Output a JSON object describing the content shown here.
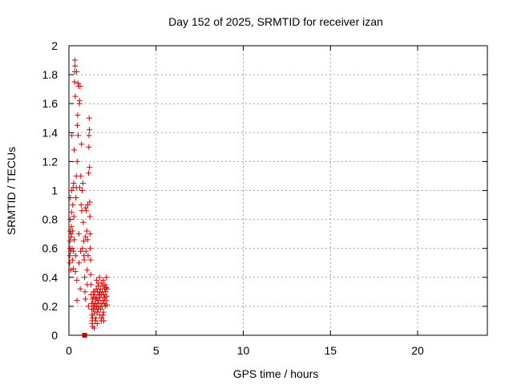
{
  "chart_data": {
    "type": "scatter",
    "title": "Day 152 of 2025, SRMTID for receiver izan",
    "xlabel": "GPS time / hours",
    "ylabel": "SRMTID / TECUs",
    "xlim": [
      0,
      24
    ],
    "ylim": [
      0,
      2
    ],
    "xticks": [
      0,
      5,
      10,
      15,
      20
    ],
    "yticks": [
      0,
      0.2,
      0.4,
      0.6,
      0.8,
      1,
      1.2,
      1.4,
      1.6,
      1.8,
      2
    ],
    "xtick_labels": [
      "0",
      "5",
      "10",
      "15",
      "20"
    ],
    "ytick_labels": [
      "0",
      "0.2",
      "0.4",
      "0.6",
      "0.8",
      "1",
      "1.2",
      "1.4",
      "1.6",
      "1.8",
      "2"
    ],
    "grid": true,
    "marker": "plus",
    "series": [
      {
        "name": "SRMTID",
        "color": "#dd0000",
        "points": [
          [
            0.05,
            0.5
          ],
          [
            0.05,
            0.55
          ],
          [
            0.06,
            0.6
          ],
          [
            0.06,
            0.65
          ],
          [
            0.07,
            0.72
          ],
          [
            0.08,
            0.8
          ],
          [
            0.08,
            0.95
          ],
          [
            0.1,
            0.45
          ],
          [
            0.1,
            0.58
          ],
          [
            0.12,
            0.68
          ],
          [
            0.13,
            0.7
          ],
          [
            0.14,
            0.75
          ],
          [
            0.15,
            0.85
          ],
          [
            0.15,
            1.0
          ],
          [
            0.17,
            1.38
          ],
          [
            0.18,
            0.6
          ],
          [
            0.2,
            0.52
          ],
          [
            0.2,
            0.72
          ],
          [
            0.22,
            0.9
          ],
          [
            0.24,
            1.02
          ],
          [
            0.25,
            0.46
          ],
          [
            0.26,
            0.58
          ],
          [
            0.27,
            1.05
          ],
          [
            0.28,
            0.82
          ],
          [
            0.3,
            0.66
          ],
          [
            0.3,
            1.28
          ],
          [
            0.32,
            1.75
          ],
          [
            0.33,
            1.82
          ],
          [
            0.34,
            1.9
          ],
          [
            0.35,
            1.86
          ],
          [
            0.36,
            1.65
          ],
          [
            0.37,
            0.44
          ],
          [
            0.38,
            0.55
          ],
          [
            0.4,
            0.95
          ],
          [
            0.42,
            1.1
          ],
          [
            0.43,
            1.02
          ],
          [
            0.44,
            1.82
          ],
          [
            0.45,
            0.38
          ],
          [
            0.46,
            0.24
          ],
          [
            0.47,
            1.2
          ],
          [
            0.48,
            1.45
          ],
          [
            0.5,
            1.52
          ],
          [
            0.52,
            1.74
          ],
          [
            0.53,
            1.38
          ],
          [
            0.55,
            1.72
          ],
          [
            0.56,
            0.7
          ],
          [
            0.58,
            0.5
          ],
          [
            0.6,
            1.6
          ],
          [
            0.61,
            1.62
          ],
          [
            0.62,
            1.02
          ],
          [
            0.64,
            1.72
          ],
          [
            0.65,
            0.32
          ],
          [
            0.67,
            0.58
          ],
          [
            0.68,
            1.1
          ],
          [
            0.7,
            0.9
          ],
          [
            0.72,
            1.32
          ],
          [
            0.74,
            0.86
          ],
          [
            0.76,
            1.0
          ],
          [
            0.78,
            0.6
          ],
          [
            0.8,
            1.05
          ],
          [
            0.82,
            0.78
          ],
          [
            0.84,
            0.65
          ],
          [
            0.86,
            0.55
          ],
          [
            0.88,
            0.52
          ],
          [
            0.9,
            0.4
          ],
          [
            0.92,
            0.3
          ],
          [
            0.94,
            0.25
          ],
          [
            0.95,
            0.68
          ],
          [
            0.96,
            0.88
          ],
          [
            0.98,
            0.58
          ],
          [
            1.0,
            0.86
          ],
          [
            1.02,
            0.72
          ],
          [
            1.04,
            0.45
          ],
          [
            1.05,
            0.35
          ],
          [
            1.07,
            0.66
          ],
          [
            1.08,
            0.9
          ],
          [
            1.1,
            0.55
          ],
          [
            1.12,
            0.2
          ],
          [
            1.13,
            1.12
          ],
          [
            1.14,
            1.3
          ],
          [
            1.15,
            1.38
          ],
          [
            1.16,
            1.5
          ],
          [
            1.17,
            1.42
          ],
          [
            1.18,
            1.16
          ],
          [
            1.19,
            0.92
          ],
          [
            1.2,
            0.82
          ],
          [
            1.21,
            0.7
          ],
          [
            1.22,
            0.6
          ],
          [
            1.24,
            0.52
          ],
          [
            1.25,
            0.42
          ],
          [
            1.27,
            0.35
          ],
          [
            1.28,
            0.28
          ],
          [
            1.3,
            0.22
          ],
          [
            1.31,
            0.18
          ],
          [
            1.32,
            0.14
          ],
          [
            1.33,
            0.1
          ],
          [
            1.34,
            0.08
          ],
          [
            1.35,
            0.06
          ],
          [
            1.36,
            0.12
          ],
          [
            1.38,
            0.22
          ],
          [
            1.4,
            0.18
          ],
          [
            1.42,
            0.26
          ],
          [
            1.44,
            0.2
          ],
          [
            1.45,
            0.15
          ],
          [
            1.47,
            0.28
          ],
          [
            1.48,
            0.3
          ],
          [
            1.5,
            0.22
          ],
          [
            1.52,
            0.18
          ],
          [
            1.54,
            0.25
          ],
          [
            1.55,
            0.12
          ],
          [
            1.57,
            0.32
          ],
          [
            1.58,
            0.2
          ],
          [
            1.6,
            0.26
          ],
          [
            1.62,
            0.16
          ],
          [
            1.64,
            0.3
          ],
          [
            1.65,
            0.22
          ],
          [
            1.67,
            0.34
          ],
          [
            1.68,
            0.18
          ],
          [
            1.7,
            0.24
          ],
          [
            1.72,
            0.28
          ],
          [
            1.74,
            0.2
          ],
          [
            1.75,
            0.14
          ],
          [
            1.77,
            0.3
          ],
          [
            1.78,
            0.26
          ],
          [
            1.8,
            0.32
          ],
          [
            1.82,
            0.18
          ],
          [
            1.84,
            0.22
          ],
          [
            1.85,
            0.36
          ],
          [
            1.87,
            0.28
          ],
          [
            1.88,
            0.12
          ],
          [
            1.9,
            0.2
          ],
          [
            1.92,
            0.3
          ],
          [
            1.94,
            0.34
          ],
          [
            1.95,
            0.24
          ],
          [
            1.97,
            0.38
          ],
          [
            1.98,
            0.16
          ],
          [
            2.0,
            0.28
          ],
          [
            2.02,
            0.22
          ],
          [
            2.04,
            0.32
          ],
          [
            2.05,
            0.26
          ],
          [
            2.07,
            0.35
          ],
          [
            2.08,
            0.2
          ],
          [
            2.1,
            0.3
          ],
          [
            2.12,
            0.24
          ],
          [
            2.14,
            0.33
          ],
          [
            2.15,
            0.4
          ],
          [
            2.17,
            0.27
          ],
          [
            2.18,
            0.21
          ],
          [
            2.2,
            0.32
          ],
          [
            1.5,
            0.1
          ],
          [
            1.62,
            0.08
          ],
          [
            1.45,
            0.05
          ],
          [
            1.7,
            0.36
          ],
          [
            1.58,
            0.38
          ],
          [
            1.85,
            0.1
          ],
          [
            1.95,
            0.14
          ],
          [
            2.0,
            0.1
          ],
          [
            1.4,
            0.3
          ],
          [
            1.35,
            0.25
          ],
          [
            1.75,
            0.4
          ]
        ]
      }
    ],
    "zero_marker": {
      "x": 0.9,
      "y": 0.0,
      "color": "#cc0000"
    }
  }
}
